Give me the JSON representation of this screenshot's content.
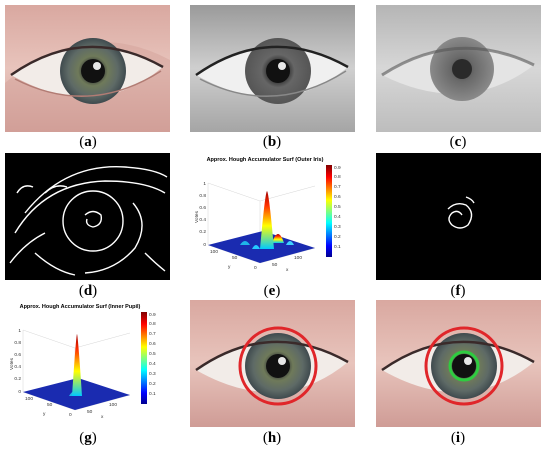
{
  "figure": {
    "captions": {
      "a": "a",
      "b": "b",
      "c": "c",
      "d": "d",
      "e": "e",
      "f": "f",
      "g": "g",
      "h": "h",
      "i": "i"
    },
    "plot_e": {
      "title": "Approx. Hough Accumulator Surf (Outer Iris)",
      "zlabel": "Votes",
      "xlabel": "x",
      "ylabel": "y",
      "z_ticks": [
        "0",
        "0.2",
        "0.4",
        "0.6",
        "0.8",
        "1"
      ],
      "x_ticks": [
        "0",
        "50",
        "100"
      ],
      "y_ticks": [
        "0",
        "50",
        "100"
      ],
      "colorbar_ticks": [
        "0.1",
        "0.2",
        "0.3",
        "0.4",
        "0.5",
        "0.6",
        "0.7",
        "0.8",
        "0.9"
      ]
    },
    "plot_g": {
      "title": "Approx. Hough Accumulator Surf (Inner Pupil)",
      "zlabel": "Votes",
      "xlabel": "x",
      "ylabel": "y",
      "z_ticks": [
        "0",
        "0.2",
        "0.4",
        "0.6",
        "0.8",
        "1"
      ],
      "x_ticks": [
        "0",
        "50",
        "100"
      ],
      "y_ticks": [
        "0",
        "50",
        "100"
      ],
      "colorbar_ticks": [
        "0.1",
        "0.2",
        "0.3",
        "0.4",
        "0.5",
        "0.6",
        "0.7",
        "0.8",
        "0.9"
      ]
    },
    "colors": {
      "outer_circle": "#e0262a",
      "inner_circle": "#2ecc40",
      "surface_base": "#1a2bb0"
    }
  }
}
